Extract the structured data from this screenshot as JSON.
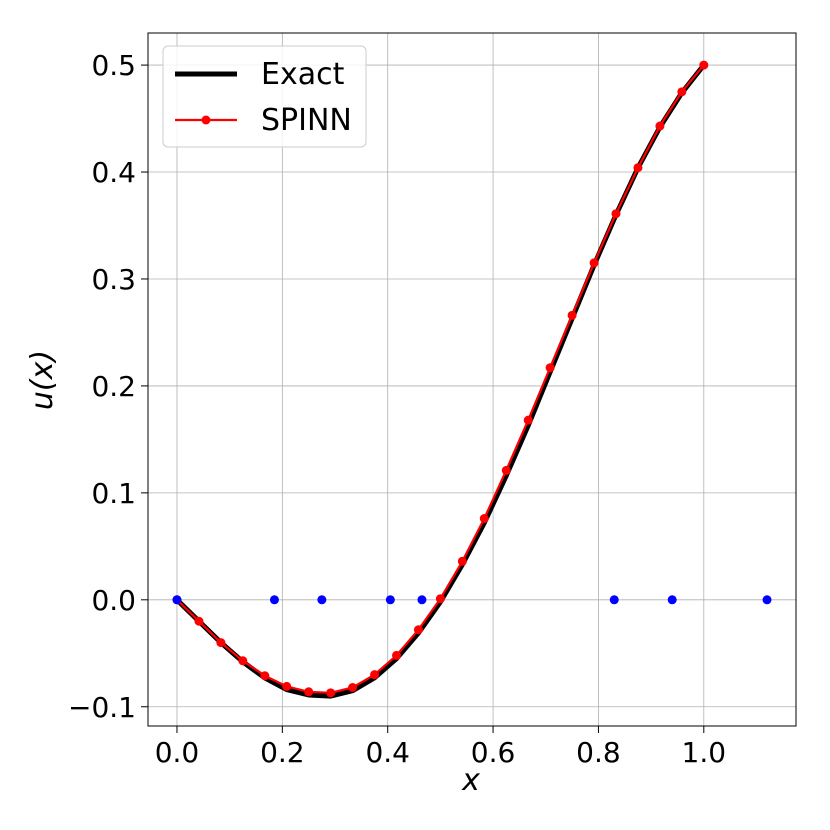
{
  "chart_data": {
    "type": "line",
    "title": "",
    "xlabel": "x",
    "ylabel": "u(x)",
    "xlim": [
      -0.055,
      1.175
    ],
    "ylim": [
      -0.118,
      0.53
    ],
    "grid": true,
    "legend_position": "top-left",
    "x_ticks": [
      "0.0",
      "0.2",
      "0.4",
      "0.6",
      "0.8",
      "1.0"
    ],
    "y_ticks": [
      "−0.1",
      "0.0",
      "0.1",
      "0.2",
      "0.3",
      "0.4",
      "0.5"
    ],
    "series": [
      {
        "name": "Exact",
        "color": "#000000",
        "style": "line",
        "x": [
          0.0,
          0.0417,
          0.0833,
          0.125,
          0.1667,
          0.2083,
          0.25,
          0.2917,
          0.3333,
          0.375,
          0.4167,
          0.4583,
          0.5,
          0.5417,
          0.5833,
          0.625,
          0.6667,
          0.7083,
          0.75,
          0.7917,
          0.8333,
          0.875,
          0.9167,
          0.9583,
          1.0
        ],
        "y": [
          0.0,
          -0.02,
          -0.04,
          -0.058,
          -0.073,
          -0.084,
          -0.089,
          -0.09,
          -0.085,
          -0.073,
          -0.055,
          -0.031,
          -0.002,
          0.033,
          0.072,
          0.116,
          0.163,
          0.213,
          0.263,
          0.313,
          0.36,
          0.404,
          0.442,
          0.474,
          0.5
        ]
      },
      {
        "name": "SPINN",
        "color": "#ff0000",
        "style": "line-marker",
        "x": [
          0.0,
          0.0417,
          0.0833,
          0.125,
          0.1667,
          0.2083,
          0.25,
          0.2917,
          0.3333,
          0.375,
          0.4167,
          0.4583,
          0.5,
          0.5417,
          0.5833,
          0.625,
          0.6667,
          0.7083,
          0.75,
          0.7917,
          0.8333,
          0.875,
          0.9167,
          0.9583,
          1.0
        ],
        "y": [
          0.0,
          -0.02,
          -0.04,
          -0.057,
          -0.071,
          -0.081,
          -0.086,
          -0.087,
          -0.082,
          -0.07,
          -0.052,
          -0.028,
          0.001,
          0.036,
          0.076,
          0.121,
          0.168,
          0.217,
          0.266,
          0.315,
          0.361,
          0.404,
          0.443,
          0.475,
          0.5
        ]
      },
      {
        "name": "",
        "color": "#0000ff",
        "style": "marker",
        "x": [
          0.0,
          0.185,
          0.275,
          0.405,
          0.465,
          0.83,
          0.94,
          1.12
        ],
        "y": [
          0.0,
          0.0,
          0.0,
          0.0,
          0.0,
          0.0,
          0.0,
          0.0
        ]
      }
    ],
    "legend": [
      {
        "label": "Exact",
        "color": "#000000",
        "marker": false
      },
      {
        "label": "SPINN",
        "color": "#ff0000",
        "marker": true
      }
    ]
  }
}
